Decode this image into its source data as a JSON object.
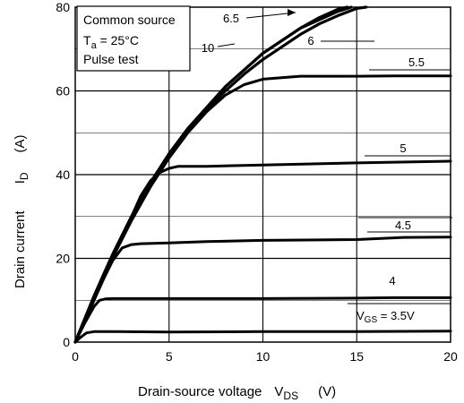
{
  "chart_data": {
    "type": "line",
    "xlabel": "Drain-source voltage",
    "xlabel_symbol": "V",
    "xlabel_subscript": "DS",
    "xlabel_unit": "(V)",
    "ylabel": "Drain current",
    "ylabel_symbol": "I",
    "ylabel_subscript": "D",
    "ylabel_unit": "(A)",
    "xlim": [
      0,
      20
    ],
    "ylim": [
      0,
      80
    ],
    "x_ticks": [
      "0",
      "5",
      "10",
      "15",
      "20"
    ],
    "y_ticks": [
      "0",
      "20",
      "40",
      "60",
      "80"
    ],
    "grid": true,
    "annotation_lines": [
      "Common source",
      "Ta = 25°C",
      "Pulse test"
    ],
    "annotation": {
      "line1": "Common source",
      "line2_prefix": "T",
      "line2_sub": "a",
      "line2_suffix": " = 25°C",
      "line3": "Pulse test"
    },
    "series": [
      {
        "name": "10",
        "x": [
          0,
          0.5,
          1,
          1.5,
          2,
          3,
          4,
          5,
          6,
          7,
          8,
          9,
          10,
          11,
          12,
          13,
          14,
          14.7
        ],
        "y": [
          0,
          5.5,
          11,
          16,
          21,
          30,
          38,
          45,
          51,
          56,
          61,
          65,
          69,
          72,
          75,
          77,
          79,
          80
        ]
      },
      {
        "name": "6.5",
        "x": [
          0,
          0.5,
          1,
          1.5,
          2,
          3,
          4,
          5,
          6,
          7,
          8,
          9,
          10,
          11,
          12,
          13,
          14,
          14.5
        ],
        "y": [
          0,
          5.5,
          11,
          16,
          21,
          30,
          38,
          45,
          51,
          56,
          61,
          65,
          69,
          72,
          75,
          77.5,
          79.5,
          80
        ]
      },
      {
        "name": "6",
        "x": [
          0,
          0.5,
          1,
          1.5,
          2,
          3,
          4,
          5,
          6,
          7,
          8,
          9,
          10,
          11,
          12,
          13,
          14,
          15,
          15.5
        ],
        "y": [
          0,
          5.4,
          10.8,
          15.7,
          20.5,
          29.5,
          37.5,
          44.5,
          50.5,
          55.5,
          60,
          64,
          67.5,
          70.5,
          73.5,
          76,
          78,
          79.7,
          80
        ]
      },
      {
        "name": "5.5",
        "x": [
          0,
          0.5,
          1,
          1.5,
          2,
          3,
          4,
          5,
          6,
          7,
          8,
          9,
          10,
          12,
          15,
          17,
          20
        ],
        "y": [
          0,
          5.2,
          10.3,
          15.3,
          20.2,
          29,
          37,
          44,
          50,
          55,
          59,
          61.5,
          62.8,
          63.5,
          63.5,
          63.6,
          63.6
        ]
      },
      {
        "name": "5",
        "x": [
          0,
          0.5,
          1,
          1.5,
          2,
          2.5,
          3,
          3.5,
          4,
          4.5,
          5,
          5.5,
          7,
          10,
          15,
          20
        ],
        "y": [
          0,
          5,
          10,
          15,
          20,
          25,
          30,
          35,
          38.5,
          40.5,
          41.5,
          42,
          42,
          42.3,
          42.8,
          43.2
        ]
      },
      {
        "name": "4.5",
        "x": [
          0,
          0.5,
          1,
          1.5,
          2,
          2.5,
          3,
          3.5,
          5,
          7,
          10,
          13,
          15,
          17.5,
          20
        ],
        "y": [
          0,
          5,
          10,
          15,
          19.5,
          22.5,
          23.3,
          23.5,
          23.7,
          24,
          24.3,
          24.4,
          24.5,
          25,
          25.1
        ]
      },
      {
        "name": "4",
        "x": [
          0,
          0.5,
          1,
          1.3,
          1.6,
          2,
          3,
          5,
          10,
          15,
          17,
          20
        ],
        "y": [
          0,
          4.5,
          8.5,
          10,
          10.3,
          10.4,
          10.4,
          10.4,
          10.4,
          10.5,
          10.6,
          10.6
        ]
      },
      {
        "name": "VGS = 3.5V",
        "x": [
          0,
          0.3,
          0.6,
          1,
          1.5,
          2,
          5,
          10,
          15,
          20
        ],
        "y": [
          0,
          1.2,
          2.2,
          2.5,
          2.5,
          2.5,
          2.4,
          2.5,
          2.5,
          2.6
        ]
      }
    ],
    "curve_labels": {
      "vgs_prefix": "V",
      "vgs_sub": "GS",
      "vgs_value": " = 3.5V"
    }
  }
}
